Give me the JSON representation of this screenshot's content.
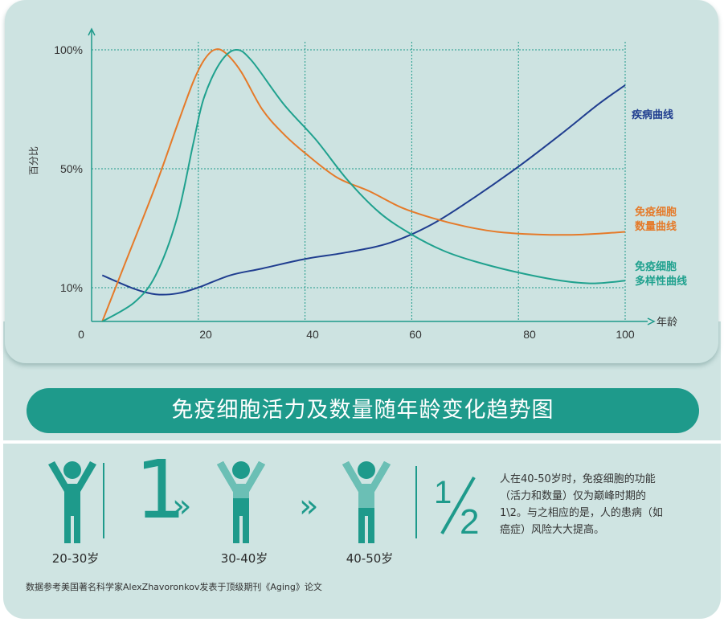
{
  "chart_data": {
    "type": "line",
    "title": "免疫细胞活力及数量随年龄变化趋势图",
    "xlabel": "年龄",
    "ylabel": "百分比",
    "x_ticks": [
      "0",
      "20",
      "40",
      "60",
      "80",
      "100"
    ],
    "y_ticks": [
      "100%",
      "50%",
      "10%"
    ],
    "grid": true,
    "colors": {
      "disease": "#1f3d8f",
      "count": "#e57a29",
      "diversity": "#1fa18e"
    },
    "series": [
      {
        "name": "疾病曲线",
        "key": "disease",
        "points": [
          [
            2,
            17
          ],
          [
            8,
            12
          ],
          [
            12,
            10
          ],
          [
            16,
            10.3
          ],
          [
            20,
            12.5
          ],
          [
            26,
            17
          ],
          [
            32,
            19.5
          ],
          [
            40,
            23
          ],
          [
            48,
            25.5
          ],
          [
            56,
            29
          ],
          [
            64,
            36
          ],
          [
            72,
            46
          ],
          [
            80,
            57
          ],
          [
            88,
            69
          ],
          [
            95,
            80
          ],
          [
            100,
            87
          ]
        ]
      },
      {
        "name": "免疫细胞 数量曲线",
        "key": "count",
        "points": [
          [
            2,
            0
          ],
          [
            6,
            20
          ],
          [
            12,
            50
          ],
          [
            16,
            72
          ],
          [
            19,
            88
          ],
          [
            21,
            96
          ],
          [
            23,
            100
          ],
          [
            25,
            99
          ],
          [
            28,
            92
          ],
          [
            32,
            78
          ],
          [
            36,
            69
          ],
          [
            40,
            62
          ],
          [
            46,
            53
          ],
          [
            52,
            48
          ],
          [
            58,
            42
          ],
          [
            64,
            38
          ],
          [
            70,
            35
          ],
          [
            76,
            33
          ],
          [
            84,
            32
          ],
          [
            92,
            32
          ],
          [
            100,
            33
          ]
        ]
      },
      {
        "name": "免疫细胞 多样性曲线",
        "key": "diversity",
        "points": [
          [
            2,
            0
          ],
          [
            8,
            7
          ],
          [
            12,
            17
          ],
          [
            16,
            38
          ],
          [
            19,
            65
          ],
          [
            21,
            82
          ],
          [
            24,
            95
          ],
          [
            27,
            100
          ],
          [
            30,
            96
          ],
          [
            36,
            80
          ],
          [
            42,
            67
          ],
          [
            48,
            52
          ],
          [
            54,
            40
          ],
          [
            60,
            32
          ],
          [
            66,
            26
          ],
          [
            72,
            22
          ],
          [
            80,
            18
          ],
          [
            88,
            15
          ],
          [
            94,
            14
          ],
          [
            100,
            15
          ]
        ]
      }
    ]
  },
  "chart_labels": {
    "disease": "疾病曲线",
    "count": [
      "免疫细胞",
      "数量曲线"
    ],
    "diversity": [
      "免疫细胞",
      "多样性曲线"
    ]
  },
  "ages": [
    "20-30岁",
    "30-40岁",
    "40-50岁"
  ],
  "big_number": "1",
  "half": "1/2",
  "description": [
    "人在40-50岁时，免疫细胞的功能",
    "（活力和数量）仅为巅峰时期的",
    "1\\2。与之相应的是，人的患病（如",
    "癌症）风险大大提高。"
  ],
  "source": "数据参考美国著名科学家AlexZhavoronkov发表于顶级期刊《Aging》论文"
}
